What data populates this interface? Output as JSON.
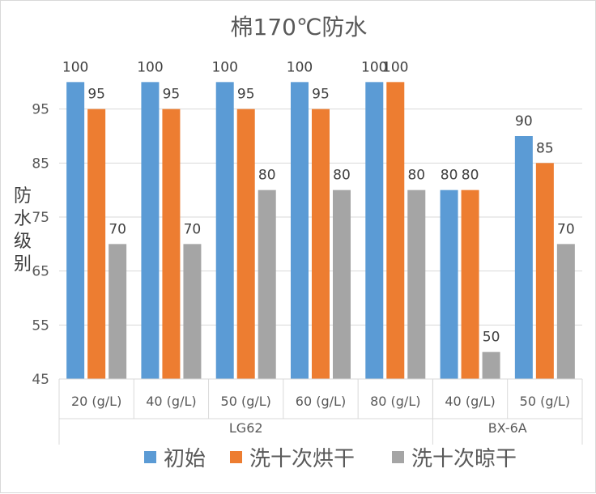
{
  "chart_data": {
    "type": "bar",
    "title": "棉170℃防水",
    "ylabel": "防水级别",
    "xlabel": "",
    "ylim": [
      45,
      105
    ],
    "yticks": [
      45,
      55,
      65,
      75,
      85,
      95
    ],
    "grid": true,
    "legend_position": "bottom",
    "groups": [
      {
        "label": "LG62",
        "categories": [
          "20 (g/L)",
          "40 (g/L)",
          "50 (g/L)",
          "60 (g/L)",
          "80 (g/L)"
        ]
      },
      {
        "label": "BX-6A",
        "categories": [
          "40 (g/L)",
          "50 (g/L)"
        ]
      }
    ],
    "categories": [
      "20 (g/L)",
      "40 (g/L)",
      "50 (g/L)",
      "60 (g/L)",
      "80 (g/L)",
      "40 (g/L)",
      "50 (g/L)"
    ],
    "series": [
      {
        "name": "初始",
        "color": "#5b9bd5",
        "values": [
          100,
          100,
          100,
          100,
          100,
          80,
          90
        ]
      },
      {
        "name": "洗十次烘干",
        "color": "#ed7d31",
        "values": [
          95,
          95,
          95,
          95,
          100,
          80,
          85
        ]
      },
      {
        "name": "洗十次晾干",
        "color": "#a5a5a5",
        "values": [
          70,
          70,
          80,
          80,
          80,
          50,
          70
        ]
      }
    ]
  }
}
